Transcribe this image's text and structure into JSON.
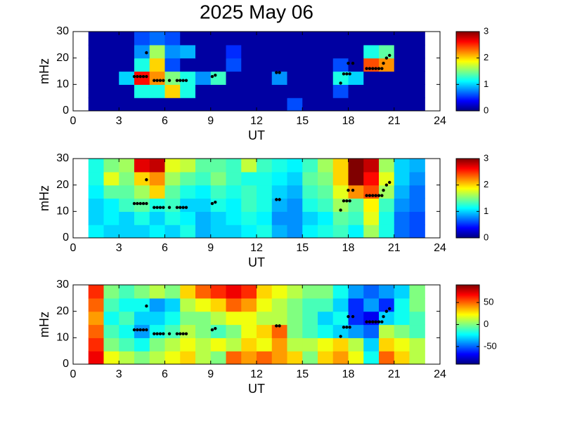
{
  "chart_data": [
    {
      "type": "heatmap",
      "title": "2025 May 06",
      "xlabel": "UT",
      "ylabel": "mHz",
      "xlim": [
        0,
        24
      ],
      "xticks": [
        0,
        3,
        6,
        9,
        12,
        15,
        18,
        21,
        24
      ],
      "ylim": [
        0,
        30
      ],
      "yticks": [
        0,
        10,
        20,
        30
      ],
      "x": [
        1,
        2,
        3,
        4,
        5,
        6,
        7,
        8,
        9,
        10,
        11,
        12,
        13,
        14,
        15,
        16,
        17,
        18,
        19,
        20,
        21,
        22,
        23
      ],
      "y": [
        0,
        5,
        10,
        15,
        20,
        25,
        30
      ],
      "zlim": [
        0,
        3
      ],
      "zticks": [
        0,
        1,
        2,
        3
      ],
      "z": [
        [
          0.1,
          0.1,
          0.1,
          0.1,
          0.1,
          0.1,
          0.1,
          0.1,
          0.1,
          0.1,
          0.1,
          0.1,
          0.1,
          0.6,
          0.1,
          0.1,
          0.1,
          0.1,
          0.1,
          0.1,
          0.1,
          0.1
        ],
        [
          0.1,
          0.1,
          0.1,
          1.2,
          1.2,
          2.0,
          1.2,
          0.1,
          0.1,
          0.1,
          0.1,
          0.1,
          0.1,
          0.1,
          0.1,
          0.1,
          0.6,
          0.1,
          0.1,
          0.1,
          0.1,
          0.1
        ],
        [
          0.1,
          0.1,
          1.0,
          2.6,
          2.2,
          1.5,
          1.2,
          0.8,
          1.3,
          0.1,
          0.1,
          0.1,
          0.8,
          0.1,
          0.1,
          0.1,
          1.2,
          1.0,
          0.1,
          0.1,
          0.1,
          0.1
        ],
        [
          0.1,
          0.1,
          0.1,
          1.2,
          2.0,
          0.6,
          0.1,
          0.1,
          0.1,
          0.6,
          0.1,
          0.1,
          0.1,
          0.1,
          0.1,
          0.1,
          0.6,
          0.1,
          2.4,
          2.2,
          0.1,
          0.1
        ],
        [
          0.1,
          0.1,
          0.1,
          0.8,
          1.6,
          0.8,
          0.9,
          0.1,
          0.1,
          0.5,
          0.1,
          0.1,
          0.1,
          0.1,
          0.1,
          0.1,
          0.1,
          0.1,
          1.2,
          1.4,
          0.1,
          0.1
        ],
        [
          0.1,
          0.1,
          0.1,
          0.6,
          0.7,
          0.6,
          0.1,
          0.1,
          0.1,
          0.1,
          0.1,
          0.1,
          0.1,
          0.1,
          0.1,
          0.1,
          0.1,
          0.1,
          0.1,
          0.1,
          0.1,
          0.1
        ]
      ],
      "points": {
        "x": [
          4.0,
          4.2,
          4.4,
          4.6,
          4.8,
          5.3,
          5.5,
          5.7,
          5.9,
          6.3,
          6.8,
          7.0,
          7.2,
          7.4,
          9.1,
          9.3,
          13.3,
          13.5,
          17.5,
          17.7,
          17.9,
          18.1,
          18.0,
          18.3,
          19.2,
          19.4,
          19.6,
          19.8,
          20.0,
          20.2,
          20.3,
          20.5,
          20.7,
          4.8
        ],
        "y": [
          13,
          13,
          13,
          13,
          13,
          11.5,
          11.5,
          11.5,
          11.5,
          11.5,
          11.5,
          11.5,
          11.5,
          11.5,
          13,
          13.5,
          14.5,
          14.5,
          10.5,
          14,
          14,
          14,
          18,
          18,
          16,
          16,
          16,
          16,
          16,
          16,
          18,
          20,
          21,
          22
        ]
      }
    },
    {
      "type": "heatmap",
      "xlabel": "UT",
      "ylabel": "mHz",
      "xlim": [
        0,
        24
      ],
      "xticks": [
        0,
        3,
        6,
        9,
        12,
        15,
        18,
        21,
        24
      ],
      "ylim": [
        0,
        30
      ],
      "yticks": [
        0,
        10,
        20,
        30
      ],
      "x": [
        1,
        2,
        3,
        4,
        5,
        6,
        7,
        8,
        9,
        10,
        11,
        12,
        13,
        14,
        15,
        16,
        17,
        18,
        19,
        20,
        21,
        22,
        23
      ],
      "y": [
        0,
        5,
        10,
        15,
        20,
        25,
        30
      ],
      "zlim": [
        0,
        3
      ],
      "zticks": [
        0,
        1,
        2,
        3
      ],
      "z": [
        [
          1.1,
          1.0,
          1.0,
          1.0,
          1.1,
          1.0,
          1.2,
          0.9,
          1.0,
          1.0,
          1.1,
          1.2,
          0.9,
          0.8,
          1.1,
          1.2,
          1.3,
          1.1,
          1.6,
          1.2,
          0.7,
          0.6
        ],
        [
          1.0,
          1.1,
          1.0,
          1.2,
          1.0,
          1.2,
          1.1,
          0.9,
          1.0,
          1.1,
          1.2,
          1.1,
          0.8,
          0.8,
          1.0,
          1.1,
          1.4,
          1.3,
          1.8,
          1.2,
          0.7,
          0.6
        ],
        [
          1.0,
          1.1,
          1.3,
          1.4,
          1.2,
          1.3,
          1.0,
          1.0,
          1.2,
          1.1,
          1.3,
          1.2,
          0.9,
          0.8,
          1.2,
          1.3,
          1.6,
          1.4,
          1.9,
          1.3,
          0.8,
          0.7
        ],
        [
          1.1,
          1.4,
          1.4,
          1.6,
          2.0,
          1.4,
          1.2,
          1.1,
          1.3,
          1.2,
          1.3,
          1.2,
          1.0,
          0.9,
          1.3,
          1.4,
          1.8,
          2.2,
          2.4,
          1.6,
          0.9,
          0.7
        ],
        [
          1.2,
          1.8,
          1.5,
          2.0,
          2.2,
          1.6,
          1.4,
          1.3,
          1.5,
          1.3,
          1.2,
          1.2,
          1.1,
          1.0,
          1.4,
          1.5,
          2.0,
          3.0,
          2.6,
          1.8,
          1.0,
          0.8
        ],
        [
          1.2,
          1.5,
          1.6,
          2.7,
          2.8,
          1.8,
          1.7,
          1.4,
          1.4,
          1.3,
          1.7,
          1.3,
          1.2,
          1.1,
          1.3,
          1.6,
          2.0,
          3.0,
          2.8,
          1.6,
          1.0,
          0.9
        ]
      ],
      "points": {
        "x": [
          4.0,
          4.2,
          4.4,
          4.6,
          4.8,
          5.3,
          5.5,
          5.7,
          5.9,
          6.3,
          6.8,
          7.0,
          7.2,
          7.4,
          9.1,
          9.3,
          13.3,
          13.5,
          17.5,
          17.7,
          17.9,
          18.1,
          18.0,
          18.3,
          19.2,
          19.4,
          19.6,
          19.8,
          20.0,
          20.2,
          20.3,
          20.5,
          20.7,
          4.8
        ],
        "y": [
          13,
          13,
          13,
          13,
          13,
          11.5,
          11.5,
          11.5,
          11.5,
          11.5,
          11.5,
          11.5,
          11.5,
          11.5,
          13,
          13.5,
          14.5,
          14.5,
          10.5,
          14,
          14,
          14,
          18,
          18,
          16,
          16,
          16,
          16,
          16,
          16,
          18,
          20,
          21,
          22
        ]
      }
    },
    {
      "type": "heatmap",
      "xlabel": "UT",
      "ylabel": "mHz",
      "xlim": [
        0,
        24
      ],
      "xticks": [
        0,
        3,
        6,
        9,
        12,
        15,
        18,
        21,
        24
      ],
      "ylim": [
        0,
        30
      ],
      "yticks": [
        0,
        10,
        20,
        30
      ],
      "x": [
        1,
        2,
        3,
        4,
        5,
        6,
        7,
        8,
        9,
        10,
        11,
        12,
        13,
        14,
        15,
        16,
        17,
        18,
        19,
        20,
        21,
        22,
        23
      ],
      "y": [
        0,
        5,
        10,
        15,
        20,
        25,
        30
      ],
      "zlim": [
        -90,
        90
      ],
      "zticks": [
        -50,
        0,
        50
      ],
      "z": [
        [
          70,
          20,
          10,
          0,
          10,
          20,
          30,
          10,
          0,
          50,
          40,
          50,
          40,
          30,
          0,
          30,
          40,
          20,
          -20,
          50,
          30,
          10
        ],
        [
          60,
          0,
          -10,
          -20,
          0,
          10,
          20,
          10,
          20,
          10,
          30,
          20,
          40,
          10,
          10,
          20,
          30,
          10,
          -30,
          30,
          20,
          10
        ],
        [
          50,
          -10,
          -20,
          -40,
          -20,
          -10,
          10,
          0,
          -10,
          0,
          20,
          30,
          50,
          0,
          -10,
          -20,
          -30,
          -40,
          -50,
          10,
          0,
          -10
        ],
        [
          40,
          -20,
          -10,
          -30,
          -30,
          -20,
          0,
          0,
          10,
          20,
          20,
          10,
          10,
          0,
          -10,
          -30,
          -20,
          -60,
          -70,
          -30,
          -20,
          -10
        ],
        [
          50,
          -10,
          -20,
          -20,
          -40,
          -30,
          10,
          20,
          30,
          50,
          40,
          20,
          10,
          0,
          -10,
          -10,
          -30,
          -60,
          -40,
          -60,
          -20,
          0
        ],
        [
          60,
          0,
          -10,
          0,
          10,
          0,
          30,
          50,
          60,
          70,
          60,
          30,
          20,
          10,
          0,
          0,
          -20,
          -40,
          -50,
          -40,
          -30,
          0
        ]
      ],
      "points": {
        "x": [
          4.0,
          4.2,
          4.4,
          4.6,
          4.8,
          5.3,
          5.5,
          5.7,
          5.9,
          6.3,
          6.8,
          7.0,
          7.2,
          7.4,
          9.1,
          9.3,
          13.3,
          13.5,
          17.5,
          17.7,
          17.9,
          18.1,
          18.0,
          18.3,
          19.2,
          19.4,
          19.6,
          19.8,
          20.0,
          20.2,
          20.3,
          20.5,
          20.7,
          4.8
        ],
        "y": [
          13,
          13,
          13,
          13,
          13,
          11.5,
          11.5,
          11.5,
          11.5,
          11.5,
          11.5,
          11.5,
          11.5,
          11.5,
          13,
          13.5,
          14.5,
          14.5,
          10.5,
          14,
          14,
          14,
          18,
          18,
          16,
          16,
          16,
          16,
          16,
          16,
          18,
          20,
          21,
          22
        ]
      }
    }
  ]
}
